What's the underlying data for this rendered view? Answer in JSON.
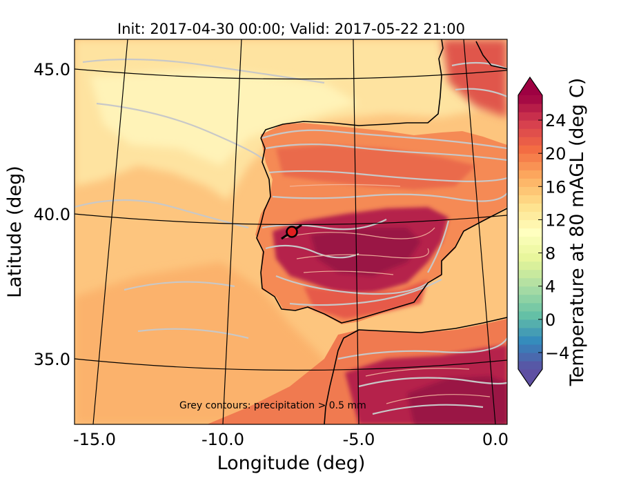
{
  "title": "Init: 2017-04-30 00:00; Valid: 2017-05-22 21:00",
  "axes": {
    "xlabel": "Longitude (deg)",
    "ylabel": "Latitude (deg)",
    "x_ticks": [
      "-15.0",
      "-10.0",
      "-5.0",
      "0.0"
    ],
    "y_ticks": [
      "45.0",
      "40.0",
      "35.0"
    ]
  },
  "colorbar": {
    "label": "Temperature at 80 mAGL (deg C)",
    "ticks": [
      "24",
      "20",
      "16",
      "12",
      "8",
      "4",
      "0",
      "−4"
    ],
    "tick_values": [
      24,
      20,
      16,
      12,
      8,
      4,
      0,
      -4
    ],
    "vmin": -6,
    "vmax": 27,
    "levels_step": 1,
    "extend": "both",
    "colormap": "Spectral_r",
    "palette": [
      "#5e4fa2",
      "#3288bd",
      "#66c2a5",
      "#abdda4",
      "#e6f598",
      "#ffffbf",
      "#fee08b",
      "#fdae61",
      "#f46d43",
      "#d53e4f",
      "#9e0142"
    ]
  },
  "annotation": "Grey contours: precipitation > 0.5 mm",
  "marker": {
    "lon": -7.6,
    "lat": 39.3,
    "color": "#e02020"
  },
  "colors": {
    "ocean": "#fdc57e",
    "land_hot": "#b5234c",
    "contour": "#c8c8c8",
    "coast": "#000000"
  }
}
